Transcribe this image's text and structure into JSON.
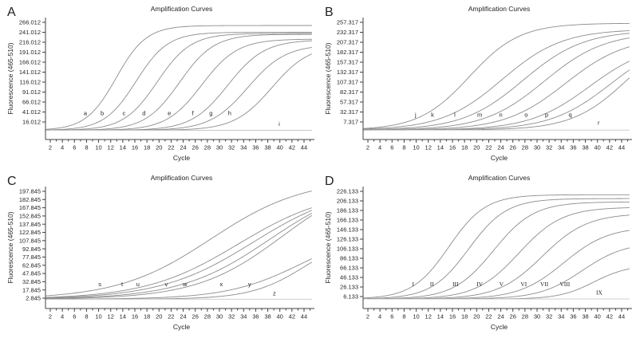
{
  "figure_title": "Amplification Curves (4-panel qPCR figure)",
  "colors": {
    "curve": "#8c8c8c",
    "flat_curve": "#c8c8c8",
    "axis": "#404040",
    "text": "#1f1f1f"
  },
  "chart_data": [
    {
      "type": "line",
      "panel": "A",
      "title": "Amplification Curves",
      "xlabel": "Cycle",
      "ylabel": "Fluorescence (465-510)",
      "x_ticks": [
        2,
        4,
        6,
        8,
        10,
        12,
        14,
        16,
        18,
        20,
        22,
        24,
        26,
        28,
        30,
        32,
        34,
        36,
        38,
        40,
        42,
        44
      ],
      "y_ticks": [
        "266.012",
        "241.012",
        "216.012",
        "191.012",
        "166.012",
        "141.012",
        "116.012",
        "91.012",
        "66.012",
        "41.012",
        "16.012"
      ],
      "x_range": [
        1.3,
        45.3
      ],
      "baseline_value": -5,
      "label_font": "sans",
      "series": [
        {
          "label": "a",
          "type": "sigmoid",
          "takeoff_cycle": 5.5,
          "midpoint": 12.9,
          "rate": 0.4,
          "plateau": 258,
          "value_at_44": 262,
          "label_pos": [
            7.8,
            33
          ]
        },
        {
          "label": "b",
          "type": "sigmoid",
          "takeoff_cycle": 8.5,
          "midpoint": 16.2,
          "rate": 0.38,
          "plateau": 241,
          "value_at_44": 239,
          "label_pos": [
            10.6,
            33
          ]
        },
        {
          "label": "c",
          "type": "sigmoid",
          "takeoff_cycle": 11.5,
          "midpoint": 19.7,
          "rate": 0.36,
          "plateau": 238,
          "value_at_44": 236,
          "label_pos": [
            14.2,
            33
          ]
        },
        {
          "label": "d",
          "type": "sigmoid",
          "takeoff_cycle": 15.0,
          "midpoint": 23.4,
          "rate": 0.35,
          "plateau": 236,
          "value_at_44": 234,
          "label_pos": [
            17.5,
            33
          ]
        },
        {
          "label": "e",
          "type": "sigmoid",
          "takeoff_cycle": 18.5,
          "midpoint": 27.1,
          "rate": 0.34,
          "plateau": 224,
          "value_at_44": 221,
          "label_pos": [
            21.7,
            33
          ]
        },
        {
          "label": "f",
          "type": "sigmoid",
          "takeoff_cycle": 22.5,
          "midpoint": 31.4,
          "rate": 0.33,
          "plateau": 222,
          "value_at_44": 217,
          "label_pos": [
            25.6,
            33
          ]
        },
        {
          "label": "g",
          "type": "sigmoid",
          "takeoff_cycle": 25.5,
          "midpoint": 34.7,
          "rate": 0.32,
          "plateau": 210,
          "value_at_44": 198,
          "label_pos": [
            28.6,
            33
          ]
        },
        {
          "label": "h",
          "type": "sigmoid",
          "takeoff_cycle": 29.5,
          "midpoint": 38.7,
          "rate": 0.32,
          "plateau": 210,
          "value_at_44": 176,
          "label_pos": [
            31.7,
            33
          ]
        },
        {
          "label": "i",
          "type": "flat",
          "value": -5,
          "label_pos": [
            39.9,
            6
          ]
        }
      ]
    },
    {
      "type": "line",
      "panel": "B",
      "title": "Amplification Curves",
      "xlabel": "Cycle",
      "ylabel": "Fluorescence (465-510)",
      "x_ticks": [
        2,
        4,
        6,
        8,
        10,
        12,
        14,
        16,
        18,
        20,
        22,
        24,
        26,
        28,
        30,
        32,
        34,
        36,
        38,
        40,
        42,
        44
      ],
      "y_ticks": [
        "257.317",
        "232.317",
        "207.317",
        "182.317",
        "157.317",
        "132.317",
        "107.317",
        "82.317",
        "57.317",
        "32.317",
        "7.317"
      ],
      "x_range": [
        1.3,
        45.3
      ],
      "baseline_value": -13,
      "label_font": "sans",
      "series": [
        {
          "label": "j",
          "type": "sigmoid",
          "takeoff_cycle": 6.5,
          "midpoint": 18.8,
          "rate": 0.24,
          "plateau": 255,
          "value_at_44": 251,
          "label_pos": [
            9.9,
            20
          ]
        },
        {
          "label": "k",
          "type": "sigmoid",
          "takeoff_cycle": 9.5,
          "midpoint": 24.2,
          "rate": 0.2,
          "plateau": 240,
          "value_at_44": 234,
          "label_pos": [
            12.7,
            20
          ]
        },
        {
          "label": "l",
          "type": "sigmoid",
          "takeoff_cycle": 13.0,
          "midpoint": 27.7,
          "rate": 0.2,
          "plateau": 237,
          "value_at_44": 228,
          "label_pos": [
            16.4,
            20
          ]
        },
        {
          "label": "m",
          "type": "sigmoid",
          "takeoff_cycle": 16.5,
          "midpoint": 31.2,
          "rate": 0.2,
          "plateau": 232,
          "value_at_44": 215,
          "label_pos": [
            20.5,
            20
          ]
        },
        {
          "label": "n",
          "type": "sigmoid",
          "takeoff_cycle": 20.0,
          "midpoint": 34.7,
          "rate": 0.2,
          "plateau": 221,
          "value_at_44": 190,
          "label_pos": [
            24.0,
            20
          ]
        },
        {
          "label": "o",
          "type": "sigmoid",
          "takeoff_cycle": 24.0,
          "midpoint": 38.7,
          "rate": 0.2,
          "plateau": 206,
          "value_at_44": 151,
          "label_pos": [
            28.2,
            20
          ]
        },
        {
          "label": "p",
          "type": "sigmoid",
          "takeoff_cycle": 27.5,
          "midpoint": 42.2,
          "rate": 0.2,
          "plateau": 219,
          "value_at_44": 126,
          "label_pos": [
            31.6,
            20
          ]
        },
        {
          "label": "q",
          "type": "sigmoid",
          "takeoff_cycle": 31.5,
          "midpoint": 44.9,
          "rate": 0.22,
          "plateau": 238,
          "value_at_44": 103,
          "label_pos": [
            35.5,
            20
          ]
        },
        {
          "label": "r",
          "type": "flat",
          "value": -13,
          "label_pos": [
            40.2,
            0
          ]
        }
      ]
    },
    {
      "type": "line",
      "panel": "C",
      "title": "Amplification Curves",
      "xlabel": "Cycle",
      "ylabel": "Fluorescence (465-510)",
      "x_ticks": [
        2,
        4,
        6,
        8,
        10,
        12,
        14,
        16,
        18,
        20,
        22,
        24,
        26,
        28,
        30,
        32,
        34,
        36,
        38,
        40,
        42,
        44
      ],
      "y_ticks": [
        "197.845",
        "182.845",
        "167.845",
        "152.845",
        "137.845",
        "122.845",
        "107.845",
        "92.845",
        "77.845",
        "62.845",
        "47.845",
        "32.845",
        "17.845",
        "2.845"
      ],
      "x_range": [
        1.3,
        45.3
      ],
      "baseline_value": 1,
      "label_font": "sans",
      "series": [
        {
          "label": "s",
          "type": "sigmoid",
          "takeoff_cycle": 6.0,
          "midpoint": 28.6,
          "rate": 0.13,
          "plateau": 221,
          "value_at_44": 195,
          "label_pos": [
            10.2,
            25
          ]
        },
        {
          "label": "t",
          "type": "sigmoid",
          "takeoff_cycle": 10.5,
          "midpoint": 33.1,
          "rate": 0.13,
          "plateau": 202,
          "value_at_44": 163,
          "label_pos": [
            13.9,
            25
          ]
        },
        {
          "label": "u",
          "type": "sigmoid",
          "takeoff_cycle": 13.0,
          "midpoint": 35.6,
          "rate": 0.13,
          "plateau": 209,
          "value_at_44": 157,
          "label_pos": [
            16.5,
            25
          ]
        },
        {
          "label": "v",
          "type": "sigmoid",
          "takeoff_cycle": 16.5,
          "midpoint": 38.3,
          "rate": 0.135,
          "plateau": 219,
          "value_at_44": 150,
          "label_pos": [
            21.2,
            25
          ]
        },
        {
          "label": "w",
          "type": "sigmoid",
          "takeoff_cycle": 19.5,
          "midpoint": 40.5,
          "rate": 0.14,
          "plateau": 232,
          "value_at_44": 144,
          "label_pos": [
            24.3,
            25
          ]
        },
        {
          "label": "x",
          "type": "sigmoid",
          "takeoff_cycle": 25.5,
          "midpoint": 43.9,
          "rate": 0.16,
          "plateau": 134,
          "value_at_44": 67,
          "label_pos": [
            30.3,
            25
          ]
        },
        {
          "label": "y",
          "type": "sigmoid",
          "takeoff_cycle": 31.0,
          "midpoint": 44.4,
          "rate": 0.22,
          "plateau": 124,
          "value_at_44": 60,
          "label_pos": [
            35.0,
            25
          ]
        },
        {
          "label": "z",
          "type": "flat",
          "value": 1,
          "label_pos": [
            39.1,
            8
          ]
        }
      ]
    },
    {
      "type": "line",
      "panel": "D",
      "title": "Amplification Curves",
      "xlabel": "Cycle",
      "ylabel": "Fluorescence (465-510)",
      "x_ticks": [
        2,
        4,
        6,
        8,
        10,
        12,
        14,
        16,
        18,
        20,
        22,
        24,
        26,
        28,
        30,
        32,
        34,
        36,
        38,
        40,
        42,
        44
      ],
      "y_ticks": [
        "226.133",
        "206.133",
        "186.133",
        "166.133",
        "146.133",
        "126.133",
        "106.133",
        "86.133",
        "66.133",
        "46.133",
        "26.133",
        "6.133"
      ],
      "x_range": [
        1.3,
        45.3
      ],
      "baseline_value": 1,
      "label_font": "serif",
      "series": [
        {
          "label": "I",
          "type": "sigmoid",
          "takeoff_cycle": 6.5,
          "midpoint": 15.4,
          "rate": 0.33,
          "plateau": 219,
          "value_at_44": 218,
          "label_pos": [
            9.5,
            28
          ]
        },
        {
          "label": "II",
          "type": "sigmoid",
          "takeoff_cycle": 9.5,
          "midpoint": 18.7,
          "rate": 0.32,
          "plateau": 211,
          "value_at_44": 209,
          "label_pos": [
            12.6,
            28
          ]
        },
        {
          "label": "III",
          "type": "sigmoid",
          "takeoff_cycle": 13.0,
          "midpoint": 22.8,
          "rate": 0.3,
          "plateau": 204,
          "value_at_44": 201,
          "label_pos": [
            16.5,
            28
          ]
        },
        {
          "label": "IV",
          "type": "sigmoid",
          "takeoff_cycle": 16.5,
          "midpoint": 27.0,
          "rate": 0.28,
          "plateau": 193,
          "value_at_44": 188,
          "label_pos": [
            20.5,
            28
          ]
        },
        {
          "label": "V",
          "type": "sigmoid",
          "takeoff_cycle": 20.0,
          "midpoint": 30.9,
          "rate": 0.27,
          "plateau": 180,
          "value_at_44": 171,
          "label_pos": [
            24.1,
            28
          ]
        },
        {
          "label": "VI",
          "type": "sigmoid",
          "takeoff_cycle": 23.5,
          "midpoint": 34.4,
          "rate": 0.27,
          "plateau": 152,
          "value_at_44": 138,
          "label_pos": [
            27.8,
            28
          ]
        },
        {
          "label": "VII",
          "type": "sigmoid",
          "takeoff_cycle": 27.0,
          "midpoint": 37.5,
          "rate": 0.28,
          "plateau": 120,
          "value_at_44": 98,
          "label_pos": [
            31.2,
            28
          ]
        },
        {
          "label": "VIII",
          "type": "sigmoid",
          "takeoff_cycle": 31.0,
          "midpoint": 39.4,
          "rate": 0.35,
          "plateau": 72,
          "value_at_44": 60,
          "label_pos": [
            34.6,
            28
          ]
        },
        {
          "label": "IX",
          "type": "flat",
          "value": 1,
          "label_pos": [
            40.3,
            10
          ]
        }
      ]
    }
  ]
}
